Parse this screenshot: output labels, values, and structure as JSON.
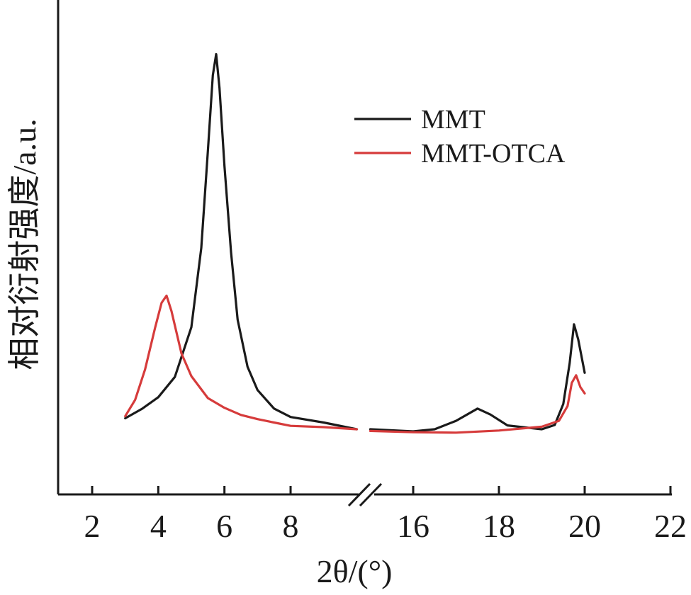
{
  "chart_data": {
    "type": "line",
    "title": "",
    "xlabel": "2θ/(°)",
    "ylabel": "相对衍射强度/a.u.",
    "x_axis_break": {
      "after": 10,
      "resume": 15
    },
    "xlim_left": [
      1,
      11
    ],
    "xlim_right": [
      14.6,
      22
    ],
    "xticks_left": [
      2,
      4,
      6,
      8
    ],
    "xticks_right": [
      16,
      18,
      20,
      22
    ],
    "xtick_labels_left": [
      "2",
      "4",
      "6",
      "8"
    ],
    "xtick_labels_right": [
      "16",
      "18",
      "20",
      "22"
    ],
    "ylim": [
      0,
      100
    ],
    "grid": false,
    "legend_position": "top-right",
    "series": [
      {
        "name": "MMT",
        "color": "#1a1a1a",
        "points": [
          [
            3.0,
            2.6
          ],
          [
            3.5,
            4.8
          ],
          [
            4.0,
            7.6
          ],
          [
            4.5,
            12.4
          ],
          [
            5.0,
            24.2
          ],
          [
            5.3,
            43.0
          ],
          [
            5.5,
            66.0
          ],
          [
            5.65,
            84.0
          ],
          [
            5.75,
            89.0
          ],
          [
            5.85,
            81.0
          ],
          [
            6.0,
            62.5
          ],
          [
            6.2,
            42.0
          ],
          [
            6.4,
            26.0
          ],
          [
            6.7,
            14.8
          ],
          [
            7.0,
            9.3
          ],
          [
            7.5,
            4.9
          ],
          [
            8.0,
            2.9
          ],
          [
            9.0,
            1.6
          ],
          [
            10.0,
            0.0
          ],
          [
            15.0,
            0.0
          ],
          [
            16.0,
            -0.5
          ],
          [
            16.5,
            0.0
          ],
          [
            17.0,
            2.0
          ],
          [
            17.5,
            4.9
          ],
          [
            17.8,
            3.5
          ],
          [
            18.2,
            0.9
          ],
          [
            19.0,
            0.0
          ],
          [
            19.3,
            1.0
          ],
          [
            19.5,
            6.0
          ],
          [
            19.65,
            15.7
          ],
          [
            19.75,
            24.9
          ],
          [
            19.85,
            21.3
          ],
          [
            20.0,
            13.4
          ]
        ]
      },
      {
        "name": "MMT-OTCA",
        "color": "#d63b3b",
        "points": [
          [
            3.0,
            3.1
          ],
          [
            3.3,
            7.0
          ],
          [
            3.6,
            14.2
          ],
          [
            3.9,
            24.0
          ],
          [
            4.1,
            30.0
          ],
          [
            4.25,
            31.7
          ],
          [
            4.4,
            28.0
          ],
          [
            4.7,
            18.0
          ],
          [
            5.0,
            12.6
          ],
          [
            5.5,
            7.4
          ],
          [
            6.0,
            5.1
          ],
          [
            6.5,
            3.4
          ],
          [
            7.0,
            2.4
          ],
          [
            7.5,
            1.6
          ],
          [
            8.0,
            0.8
          ],
          [
            9.0,
            0.5
          ],
          [
            10.0,
            0.0
          ],
          [
            15.0,
            -0.4
          ],
          [
            16.0,
            -0.7
          ],
          [
            17.0,
            -0.8
          ],
          [
            18.0,
            -0.3
          ],
          [
            19.0,
            0.6
          ],
          [
            19.4,
            2.0
          ],
          [
            19.6,
            5.5
          ],
          [
            19.7,
            11.0
          ],
          [
            19.8,
            12.8
          ],
          [
            19.9,
            10.0
          ],
          [
            20.0,
            8.5
          ]
        ]
      }
    ]
  }
}
